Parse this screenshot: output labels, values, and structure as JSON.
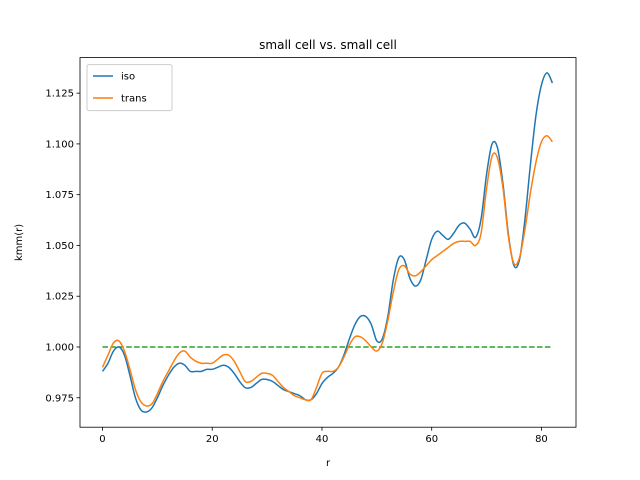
{
  "chart_data": {
    "type": "line",
    "title": "small cell vs. small cell",
    "xlabel": "r",
    "ylabel": "kmm(r)",
    "xlim": [
      -4.1,
      86.3
    ],
    "ylim": [
      0.9605,
      1.1425
    ],
    "xticks": [
      0,
      20,
      40,
      60,
      80
    ],
    "xtick_labels": [
      "0",
      "20",
      "40",
      "60",
      "80"
    ],
    "yticks": [
      0.975,
      1.0,
      1.025,
      1.05,
      1.075,
      1.1,
      1.125
    ],
    "ytick_labels": [
      "0.975",
      "1.000",
      "1.025",
      "1.050",
      "1.075",
      "1.100",
      "1.125"
    ],
    "grid": false,
    "legend_position": "top-left",
    "series": [
      {
        "name": "iso",
        "color": "#1f77b4",
        "style": "solid",
        "x": [
          0,
          1,
          2,
          3,
          4,
          5,
          6,
          7,
          8,
          9,
          10,
          11,
          12,
          13,
          14,
          15,
          16,
          17,
          18,
          19,
          20,
          21,
          22,
          23,
          24,
          25,
          26,
          27,
          28,
          29,
          30,
          31,
          32,
          33,
          34,
          35,
          36,
          37,
          38,
          39,
          40,
          41,
          42,
          43,
          44,
          45,
          46,
          47,
          48,
          49,
          50,
          51,
          52,
          53,
          54,
          55,
          56,
          57,
          58,
          59,
          60,
          61,
          62,
          63,
          64,
          65,
          66,
          67,
          68,
          69,
          70,
          71,
          72,
          73,
          74,
          75,
          76,
          77,
          78,
          79,
          80,
          81,
          82
        ],
        "y": [
          0.988,
          0.992,
          0.998,
          1.0,
          0.996,
          0.986,
          0.975,
          0.969,
          0.968,
          0.97,
          0.975,
          0.981,
          0.986,
          0.99,
          0.992,
          0.991,
          0.988,
          0.988,
          0.988,
          0.989,
          0.989,
          0.99,
          0.991,
          0.99,
          0.987,
          0.983,
          0.98,
          0.98,
          0.982,
          0.984,
          0.984,
          0.983,
          0.981,
          0.979,
          0.978,
          0.977,
          0.976,
          0.974,
          0.974,
          0.977,
          0.982,
          0.985,
          0.987,
          0.99,
          0.996,
          1.004,
          1.011,
          1.015,
          1.015,
          1.011,
          1.003,
          1.004,
          1.015,
          1.033,
          1.044,
          1.043,
          1.034,
          1.03,
          1.033,
          1.043,
          1.053,
          1.057,
          1.055,
          1.053,
          1.056,
          1.06,
          1.061,
          1.058,
          1.054,
          1.063,
          1.085,
          1.1,
          1.098,
          1.08,
          1.055,
          1.04,
          1.043,
          1.063,
          1.09,
          1.114,
          1.129,
          1.135,
          1.13
        ],
        "step": 1
      },
      {
        "name": "trans",
        "color": "#ff7f0e",
        "style": "solid",
        "x": [
          0,
          1,
          2,
          3,
          4,
          5,
          6,
          7,
          8,
          9,
          10,
          11,
          12,
          13,
          14,
          15,
          16,
          17,
          18,
          19,
          20,
          21,
          22,
          23,
          24,
          25,
          26,
          27,
          28,
          29,
          30,
          31,
          32,
          33,
          34,
          35,
          36,
          37,
          38,
          39,
          40,
          41,
          42,
          43,
          44,
          45,
          46,
          47,
          48,
          49,
          50,
          51,
          52,
          53,
          54,
          55,
          56,
          57,
          58,
          59,
          60,
          61,
          62,
          63,
          64,
          65,
          66,
          67,
          68,
          69,
          70,
          71,
          72,
          73,
          74,
          75,
          76,
          77,
          78,
          79,
          80,
          81,
          82
        ],
        "y": [
          0.99,
          0.996,
          1.002,
          1.003,
          0.998,
          0.989,
          0.979,
          0.973,
          0.971,
          0.972,
          0.977,
          0.983,
          0.988,
          0.993,
          0.997,
          0.998,
          0.995,
          0.993,
          0.992,
          0.992,
          0.992,
          0.994,
          0.996,
          0.996,
          0.993,
          0.988,
          0.983,
          0.983,
          0.985,
          0.987,
          0.987,
          0.986,
          0.983,
          0.98,
          0.978,
          0.976,
          0.975,
          0.974,
          0.974,
          0.98,
          0.987,
          0.988,
          0.988,
          0.99,
          0.995,
          1.001,
          1.005,
          1.005,
          1.003,
          1.0,
          0.998,
          1.002,
          1.013,
          1.027,
          1.038,
          1.04,
          1.036,
          1.035,
          1.037,
          1.04,
          1.043,
          1.045,
          1.047,
          1.049,
          1.051,
          1.052,
          1.052,
          1.052,
          1.05,
          1.056,
          1.078,
          1.094,
          1.093,
          1.078,
          1.054,
          1.041,
          1.044,
          1.058,
          1.076,
          1.091,
          1.101,
          1.104,
          1.101
        ],
        "step": 1
      },
      {
        "name": "",
        "color": "#2ca02c",
        "style": "dashed",
        "x": [
          0,
          82
        ],
        "y": [
          1.0,
          1.0
        ]
      }
    ]
  }
}
